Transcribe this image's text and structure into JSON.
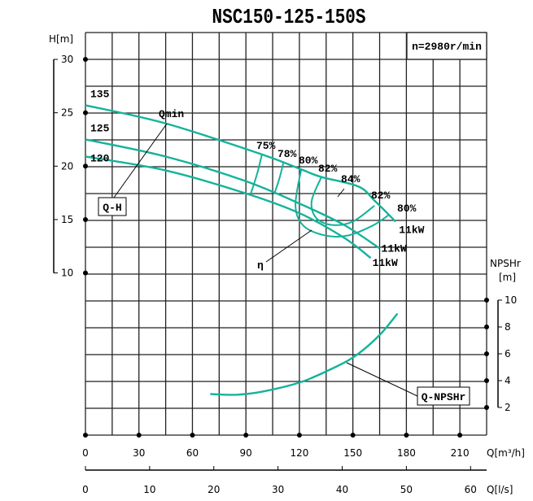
{
  "chart_data": {
    "type": "line",
    "title": "NSC150-125-150S",
    "speed_label": "n=2980r/min",
    "colors": {
      "curves": "#14b39a",
      "grid": "#222222"
    },
    "grid": true,
    "x_axis": {
      "label": "Q[m³/h]",
      "range": [
        0,
        225
      ],
      "ticks": [
        0,
        30,
        60,
        90,
        120,
        150,
        180,
        210
      ]
    },
    "x2_axis": {
      "label": "Q[l/s]",
      "ticks": [
        0,
        10,
        20,
        30,
        40,
        50,
        60
      ]
    },
    "y_axis": {
      "label": "H[m]",
      "ticks": [
        30,
        25,
        20,
        15,
        10
      ]
    },
    "y2_axis": {
      "label": "NPSHr",
      "unit": "[m]",
      "ticks": [
        10,
        8,
        6,
        4,
        2
      ]
    },
    "head_curves": [
      {
        "name": "135",
        "points": [
          [
            0,
            25.7
          ],
          [
            45,
            24.0
          ],
          [
            99,
            21.1
          ],
          [
            121,
            19.7
          ],
          [
            132,
            19.0
          ],
          [
            153,
            18.1
          ],
          [
            162,
            16.8
          ],
          [
            174,
            14.8
          ]
        ],
        "end_label": "11kW"
      },
      {
        "name": "125",
        "points": [
          [
            0,
            22.5
          ],
          [
            45,
            20.9
          ],
          [
            89,
            18.65
          ],
          [
            120,
            16.5
          ],
          [
            145,
            14.5
          ],
          [
            165,
            12.3
          ]
        ],
        "end_label": "11kW"
      },
      {
        "name": "120",
        "points": [
          [
            0,
            20.9
          ],
          [
            45,
            19.6
          ],
          [
            89,
            17.5
          ],
          [
            120,
            15.6
          ],
          [
            145,
            13.3
          ],
          [
            160,
            11.4
          ]
        ],
        "end_label": "11kW"
      }
    ],
    "efficiency_contours": [
      {
        "label": "75%",
        "points": [
          [
            99,
            21.1
          ],
          [
            96.3,
            19.3
          ],
          [
            92.7,
            17.4
          ]
        ]
      },
      {
        "label": "78%",
        "points": [
          [
            111,
            20.3
          ],
          [
            108.7,
            18.8
          ],
          [
            105.9,
            17.4
          ]
        ]
      },
      {
        "label": "80%",
        "label_right": "80%",
        "points": [
          [
            121,
            19.7
          ],
          [
            117.8,
            16.3
          ],
          [
            122.4,
            14.4
          ],
          [
            134.7,
            13.5
          ],
          [
            147,
            13.5
          ],
          [
            160.7,
            14.4
          ],
          [
            169.9,
            15.4
          ]
        ]
      },
      {
        "label": "82%",
        "label_right": "82%",
        "points": [
          [
            132.4,
            19.0
          ],
          [
            126.9,
            16.75
          ],
          [
            129.2,
            15.2
          ],
          [
            137.9,
            14.5
          ],
          [
            149.8,
            14.8
          ],
          [
            162.1,
            16.3
          ]
        ]
      }
    ],
    "peak_efficiency_label": "84%",
    "npshr_curve": {
      "points": [
        [
          70,
          3.0
        ],
        [
          85,
          2.95
        ],
        [
          100,
          3.2
        ],
        [
          121,
          3.9
        ],
        [
          140,
          5.0
        ],
        [
          152,
          5.9
        ],
        [
          165,
          7.4
        ],
        [
          175,
          9.0
        ]
      ]
    },
    "annotations": {
      "qmin": "Qmin",
      "qh": "Q-H",
      "eta": "η",
      "qnpsh": "Q-NPSHr"
    }
  }
}
